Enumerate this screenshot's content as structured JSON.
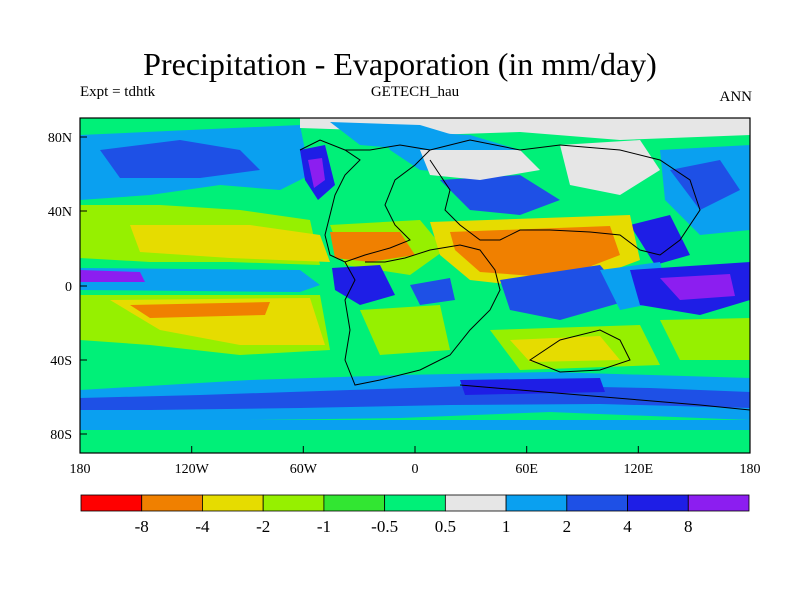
{
  "title": "Precipitation - Evaporation (in mm/day)",
  "subtitle_left": "Expt = tdhtk",
  "subtitle_center": "GETECH_hau",
  "subtitle_right": "ANN",
  "colors": {
    "c1": "#ff0000",
    "c2": "#f08000",
    "c3": "#e6dc00",
    "c4": "#96f000",
    "c5": "#32e632",
    "c6": "#00f078",
    "c7": "#e6e6e6",
    "c8": "#0aa0f0",
    "c9": "#1e50e6",
    "c10": "#1e1ee6",
    "c11": "#8c1ef0"
  },
  "chart_data": {
    "type": "map",
    "projection": "cylindrical-equidistant",
    "lon_range": [
      -180,
      180
    ],
    "lat_range": [
      -90,
      90
    ],
    "x_ticks": [
      "180",
      "120W",
      "60W",
      "0",
      "60E",
      "120E",
      "180"
    ],
    "y_ticks": [
      "80N",
      "40N",
      "0",
      "40S",
      "80S"
    ],
    "colorbar": {
      "levels": [
        "-8",
        "-4",
        "-2",
        "-1",
        "-0.5",
        "0.5",
        "1",
        "2",
        "4",
        "8"
      ],
      "colors": [
        "#ff0000",
        "#f08000",
        "#e6dc00",
        "#96f000",
        "#32e632",
        "#00f078",
        "#e6e6e6",
        "#0aa0f0",
        "#1e50e6",
        "#1e1ee6",
        "#8c1ef0"
      ]
    }
  }
}
